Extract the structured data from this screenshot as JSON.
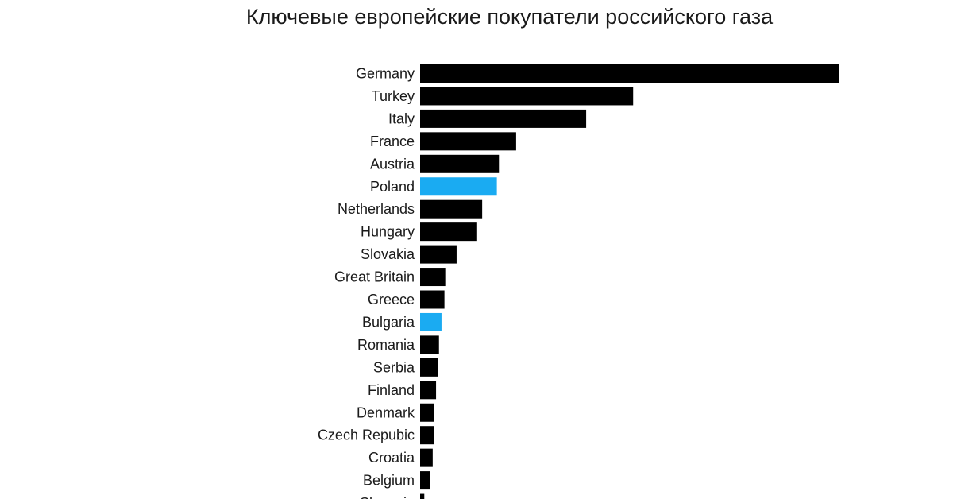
{
  "chart_data": {
    "type": "bar",
    "orientation": "horizontal",
    "title": "Ключевые европейские покупатели российского газа",
    "categories": [
      "Germany",
      "Turkey",
      "Italy",
      "France",
      "Austria",
      "Poland",
      "Netherlands",
      "Hungary",
      "Slovakia",
      "Great Britain",
      "Greece",
      "Bulgaria",
      "Romania",
      "Serbia",
      "Finland",
      "Denmark",
      "Czech Repubic",
      "Croatia",
      "Belgium",
      "Slovenia"
    ],
    "values": [
      100,
      50.8,
      39.6,
      22.9,
      18.8,
      18.3,
      14.8,
      13.6,
      8.7,
      6.0,
      5.8,
      5.1,
      4.5,
      4.2,
      3.8,
      3.4,
      3.4,
      3.0,
      2.4,
      1.0
    ],
    "highlighted": [
      "Poland",
      "Bulgaria"
    ],
    "colors": {
      "default": "#000000",
      "highlight": "#1aabf2"
    },
    "xlim": [
      0,
      100
    ],
    "grid": false,
    "legend": "none"
  }
}
